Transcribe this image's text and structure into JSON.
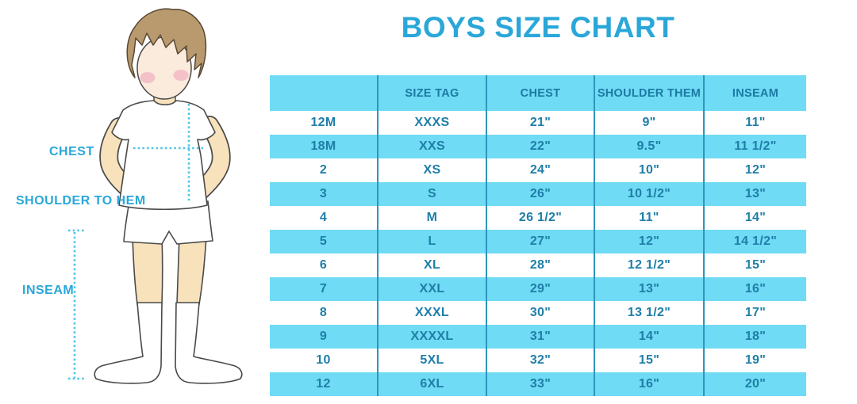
{
  "diagram": {
    "labels": {
      "chest": "CHEST",
      "shoulder_to_hem": "SHOULDER TO HEM",
      "inseam": "INSEAM"
    }
  },
  "colors": {
    "accent_cyan": "#2AA7D9",
    "table_stripe_cyan": "#6FDBF4",
    "table_text": "#1F7EA8",
    "table_divider": "#2E96BC",
    "dotted_line": "#4FC4E6",
    "hair_brown": "#B99A6E",
    "skin": "#F8E2BC"
  },
  "chart_data": {
    "type": "table",
    "title": "BOYS SIZE CHART",
    "columns": [
      "",
      "SIZE TAG",
      "CHEST",
      "SHOULDER THEM",
      "INSEAM"
    ],
    "rows": [
      [
        "12M",
        "XXXS",
        "21\"",
        "9\"",
        "11\""
      ],
      [
        "18M",
        "XXS",
        "22\"",
        "9.5\"",
        "11 1/2\""
      ],
      [
        "2",
        "XS",
        "24\"",
        "10\"",
        "12\""
      ],
      [
        "3",
        "S",
        "26\"",
        "10 1/2\"",
        "13\""
      ],
      [
        "4",
        "M",
        "26 1/2\"",
        "11\"",
        "14\""
      ],
      [
        "5",
        "L",
        "27\"",
        "12\"",
        "14 1/2\""
      ],
      [
        "6",
        "XL",
        "28\"",
        "12 1/2\"",
        "15\""
      ],
      [
        "7",
        "XXL",
        "29\"",
        "13\"",
        "16\""
      ],
      [
        "8",
        "XXXL",
        "30\"",
        "13 1/2\"",
        "17\""
      ],
      [
        "9",
        "XXXXL",
        "31\"",
        "14\"",
        "18\""
      ],
      [
        "10",
        "5XL",
        "32\"",
        "15\"",
        "19\""
      ],
      [
        "12",
        "6XL",
        "33\"",
        "16\"",
        "20\""
      ]
    ]
  }
}
